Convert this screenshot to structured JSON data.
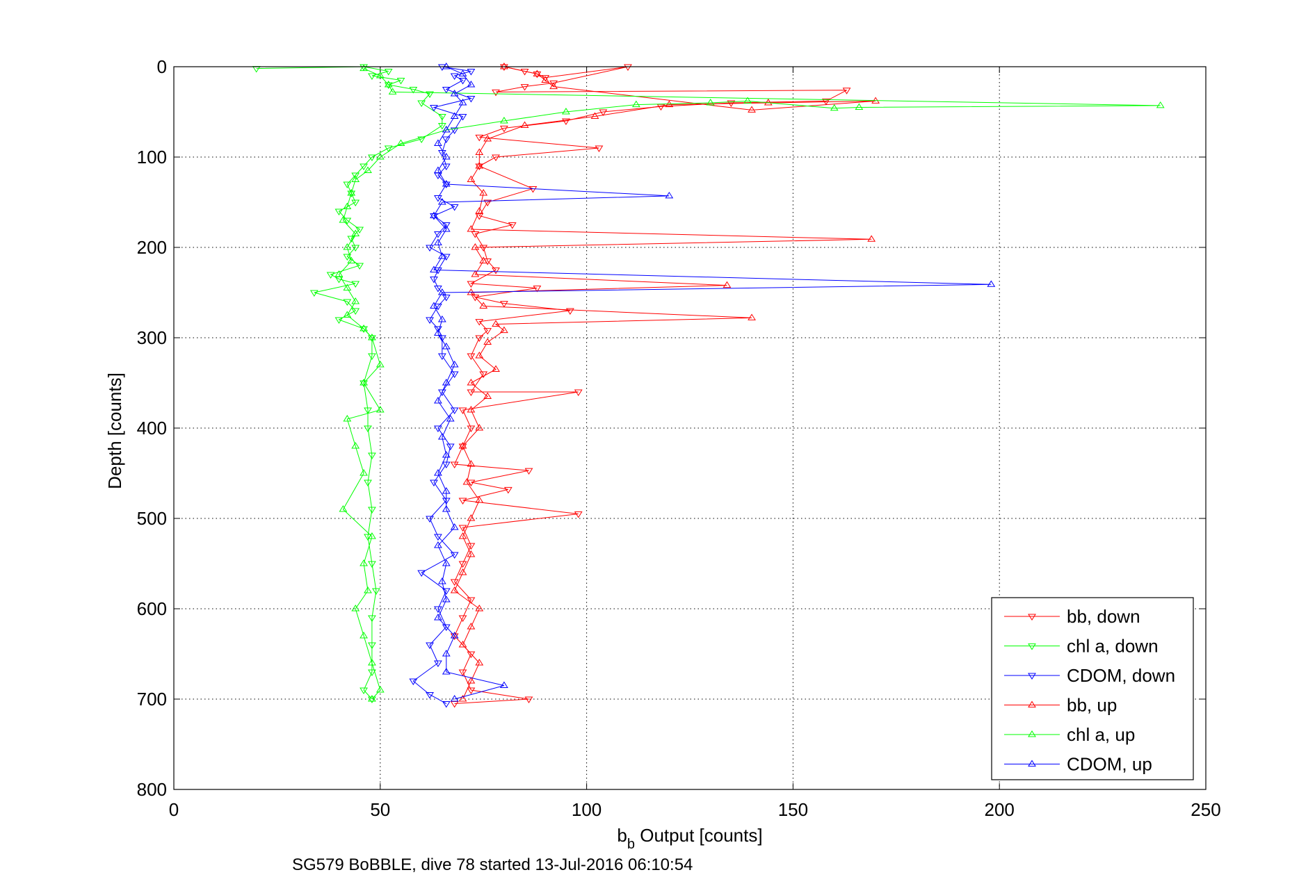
{
  "chart_data": {
    "type": "scatter",
    "xlabel_main": "b",
    "xlabel_sub": "b",
    "xlabel_rest": " Output [counts]",
    "ylabel": "Depth [counts]",
    "caption": "SG579 BoBBLE, dive 78 started 13-Jul-2016 06:10:54",
    "xlim": [
      0,
      250
    ],
    "ylim": [
      0,
      800
    ],
    "y_reversed": true,
    "grid": true,
    "x_ticks": [
      0,
      50,
      100,
      150,
      200,
      250
    ],
    "y_ticks": [
      0,
      100,
      200,
      300,
      400,
      500,
      600,
      700,
      800
    ],
    "x_tick_labels": [
      "0",
      "50",
      "100",
      "150",
      "200",
      "250"
    ],
    "y_tick_labels": [
      "0",
      "100",
      "200",
      "300",
      "400",
      "500",
      "600",
      "700",
      "800"
    ],
    "legend_position": "bottom-right",
    "series": [
      {
        "name": "bb, down",
        "color": "#ff0000",
        "marker": "triangle-down",
        "points": [
          [
            80,
            0
          ],
          [
            85,
            5
          ],
          [
            88,
            8
          ],
          [
            90,
            12
          ],
          [
            110,
            0
          ],
          [
            92,
            18
          ],
          [
            85,
            22
          ],
          [
            78,
            28
          ],
          [
            163,
            26
          ],
          [
            158,
            38
          ],
          [
            135,
            40
          ],
          [
            118,
            44
          ],
          [
            104,
            50
          ],
          [
            95,
            60
          ],
          [
            80,
            68
          ],
          [
            74,
            78
          ],
          [
            103,
            90
          ],
          [
            78,
            100
          ],
          [
            74,
            110
          ],
          [
            87,
            135
          ],
          [
            76,
            150
          ],
          [
            74,
            165
          ],
          [
            82,
            175
          ],
          [
            73,
            185
          ],
          [
            75,
            200
          ],
          [
            76,
            215
          ],
          [
            78,
            225
          ],
          [
            72,
            240
          ],
          [
            88,
            245
          ],
          [
            73,
            255
          ],
          [
            80,
            262
          ],
          [
            96,
            270
          ],
          [
            74,
            282
          ],
          [
            76,
            292
          ],
          [
            74,
            300
          ],
          [
            72,
            320
          ],
          [
            75,
            340
          ],
          [
            72,
            360
          ],
          [
            98,
            360
          ],
          [
            70,
            380
          ],
          [
            72,
            400
          ],
          [
            70,
            420
          ],
          [
            68,
            440
          ],
          [
            86,
            447
          ],
          [
            72,
            460
          ],
          [
            81,
            468
          ],
          [
            70,
            480
          ],
          [
            98,
            495
          ],
          [
            70,
            510
          ],
          [
            72,
            530
          ],
          [
            70,
            550
          ],
          [
            68,
            570
          ],
          [
            72,
            590
          ],
          [
            70,
            610
          ],
          [
            68,
            630
          ],
          [
            72,
            650
          ],
          [
            70,
            670
          ],
          [
            72,
            690
          ],
          [
            86,
            700
          ],
          [
            68,
            705
          ]
        ]
      },
      {
        "name": "chl a, down",
        "color": "#00ff00",
        "marker": "triangle-down",
        "points": [
          [
            20,
            2
          ],
          [
            46,
            0
          ],
          [
            52,
            5
          ],
          [
            48,
            10
          ],
          [
            55,
            15
          ],
          [
            52,
            20
          ],
          [
            58,
            25
          ],
          [
            62,
            30
          ],
          [
            60,
            40
          ],
          [
            65,
            55
          ],
          [
            65,
            65
          ],
          [
            60,
            80
          ],
          [
            52,
            90
          ],
          [
            48,
            100
          ],
          [
            46,
            110
          ],
          [
            44,
            120
          ],
          [
            42,
            130
          ],
          [
            43,
            140
          ],
          [
            44,
            150
          ],
          [
            40,
            160
          ],
          [
            42,
            170
          ],
          [
            45,
            180
          ],
          [
            43,
            190
          ],
          [
            44,
            200
          ],
          [
            42,
            210
          ],
          [
            45,
            220
          ],
          [
            38,
            230
          ],
          [
            40,
            235
          ],
          [
            44,
            240
          ],
          [
            34,
            250
          ],
          [
            42,
            260
          ],
          [
            44,
            270
          ],
          [
            40,
            280
          ],
          [
            46,
            290
          ],
          [
            48,
            300
          ],
          [
            48,
            320
          ],
          [
            46,
            350
          ],
          [
            47,
            380
          ],
          [
            47,
            400
          ],
          [
            48,
            430
          ],
          [
            47,
            460
          ],
          [
            48,
            490
          ],
          [
            47,
            520
          ],
          [
            48,
            550
          ],
          [
            49,
            580
          ],
          [
            48,
            610
          ],
          [
            48,
            640
          ],
          [
            48,
            670
          ],
          [
            46,
            690
          ],
          [
            48,
            700
          ]
        ]
      },
      {
        "name": "CDOM, down",
        "color": "#0000ff",
        "marker": "triangle-down",
        "points": [
          [
            65,
            0
          ],
          [
            72,
            5
          ],
          [
            68,
            10
          ],
          [
            70,
            15
          ],
          [
            66,
            25
          ],
          [
            72,
            35
          ],
          [
            63,
            45
          ],
          [
            70,
            55
          ],
          [
            68,
            70
          ],
          [
            66,
            80
          ],
          [
            65,
            95
          ],
          [
            66,
            110
          ],
          [
            64,
            120
          ],
          [
            66,
            130
          ],
          [
            64,
            145
          ],
          [
            68,
            155
          ],
          [
            63,
            165
          ],
          [
            66,
            175
          ],
          [
            64,
            185
          ],
          [
            62,
            200
          ],
          [
            66,
            210
          ],
          [
            64,
            225
          ],
          [
            63,
            235
          ],
          [
            64,
            245
          ],
          [
            66,
            255
          ],
          [
            64,
            265
          ],
          [
            62,
            280
          ],
          [
            64,
            290
          ],
          [
            65,
            300
          ],
          [
            65,
            320
          ],
          [
            68,
            340
          ],
          [
            65,
            360
          ],
          [
            68,
            380
          ],
          [
            64,
            400
          ],
          [
            67,
            420
          ],
          [
            66,
            440
          ],
          [
            63,
            460
          ],
          [
            66,
            480
          ],
          [
            62,
            500
          ],
          [
            64,
            520
          ],
          [
            68,
            540
          ],
          [
            60,
            560
          ],
          [
            66,
            580
          ],
          [
            64,
            600
          ],
          [
            66,
            620
          ],
          [
            62,
            640
          ],
          [
            64,
            660
          ],
          [
            58,
            680
          ],
          [
            62,
            695
          ],
          [
            66,
            705
          ]
        ]
      },
      {
        "name": "bb, up",
        "color": "#ff0000",
        "marker": "triangle-up",
        "points": [
          [
            80,
            0
          ],
          [
            88,
            8
          ],
          [
            90,
            15
          ],
          [
            92,
            22
          ],
          [
            140,
            48
          ],
          [
            170,
            38
          ],
          [
            144,
            40
          ],
          [
            120,
            42
          ],
          [
            102,
            55
          ],
          [
            85,
            65
          ],
          [
            76,
            80
          ],
          [
            74,
            95
          ],
          [
            74,
            110
          ],
          [
            72,
            125
          ],
          [
            75,
            140
          ],
          [
            74,
            160
          ],
          [
            72,
            180
          ],
          [
            169,
            191
          ],
          [
            73,
            200
          ],
          [
            75,
            215
          ],
          [
            73,
            230
          ],
          [
            134,
            242
          ],
          [
            72,
            250
          ],
          [
            75,
            265
          ],
          [
            140,
            278
          ],
          [
            78,
            285
          ],
          [
            80,
            292
          ],
          [
            76,
            305
          ],
          [
            74,
            320
          ],
          [
            78,
            335
          ],
          [
            72,
            350
          ],
          [
            76,
            365
          ],
          [
            72,
            380
          ],
          [
            74,
            400
          ],
          [
            70,
            420
          ],
          [
            72,
            440
          ],
          [
            71,
            460
          ],
          [
            74,
            480
          ],
          [
            72,
            500
          ],
          [
            70,
            520
          ],
          [
            72,
            540
          ],
          [
            70,
            560
          ],
          [
            68,
            580
          ],
          [
            74,
            600
          ],
          [
            72,
            620
          ],
          [
            70,
            640
          ],
          [
            74,
            660
          ],
          [
            72,
            680
          ],
          [
            70,
            700
          ]
        ]
      },
      {
        "name": "chl a, up",
        "color": "#00ff00",
        "marker": "triangle-up",
        "points": [
          [
            46,
            2
          ],
          [
            50,
            10
          ],
          [
            52,
            20
          ],
          [
            53,
            28
          ],
          [
            239,
            43
          ],
          [
            166,
            45
          ],
          [
            160,
            46
          ],
          [
            139,
            38
          ],
          [
            130,
            40
          ],
          [
            112,
            42
          ],
          [
            95,
            50
          ],
          [
            80,
            60
          ],
          [
            66,
            70
          ],
          [
            55,
            85
          ],
          [
            50,
            100
          ],
          [
            47,
            115
          ],
          [
            44,
            125
          ],
          [
            43,
            140
          ],
          [
            42,
            155
          ],
          [
            41,
            170
          ],
          [
            44,
            185
          ],
          [
            42,
            200
          ],
          [
            43,
            215
          ],
          [
            40,
            230
          ],
          [
            42,
            245
          ],
          [
            44,
            260
          ],
          [
            42,
            275
          ],
          [
            46,
            290
          ],
          [
            48,
            300
          ],
          [
            50,
            330
          ],
          [
            46,
            350
          ],
          [
            50,
            380
          ],
          [
            42,
            390
          ],
          [
            44,
            420
          ],
          [
            46,
            450
          ],
          [
            41,
            490
          ],
          [
            48,
            520
          ],
          [
            46,
            550
          ],
          [
            47,
            580
          ],
          [
            44,
            600
          ],
          [
            46,
            630
          ],
          [
            48,
            660
          ],
          [
            50,
            690
          ],
          [
            48,
            700
          ]
        ]
      },
      {
        "name": "CDOM, up",
        "color": "#0000ff",
        "marker": "triangle-up",
        "points": [
          [
            66,
            0
          ],
          [
            70,
            8
          ],
          [
            72,
            20
          ],
          [
            68,
            30
          ],
          [
            70,
            40
          ],
          [
            68,
            55
          ],
          [
            66,
            70
          ],
          [
            64,
            85
          ],
          [
            66,
            100
          ],
          [
            64,
            115
          ],
          [
            66,
            130
          ],
          [
            120,
            143
          ],
          [
            65,
            150
          ],
          [
            63,
            165
          ],
          [
            66,
            180
          ],
          [
            64,
            195
          ],
          [
            65,
            210
          ],
          [
            63,
            225
          ],
          [
            198,
            241
          ],
          [
            65,
            250
          ],
          [
            63,
            265
          ],
          [
            65,
            280
          ],
          [
            64,
            295
          ],
          [
            66,
            310
          ],
          [
            68,
            330
          ],
          [
            66,
            350
          ],
          [
            64,
            370
          ],
          [
            67,
            390
          ],
          [
            65,
            410
          ],
          [
            66,
            430
          ],
          [
            64,
            450
          ],
          [
            66,
            470
          ],
          [
            66,
            490
          ],
          [
            68,
            510
          ],
          [
            64,
            530
          ],
          [
            66,
            550
          ],
          [
            65,
            570
          ],
          [
            66,
            590
          ],
          [
            64,
            610
          ],
          [
            68,
            630
          ],
          [
            66,
            650
          ],
          [
            66,
            670
          ],
          [
            80,
            685
          ],
          [
            68,
            700
          ]
        ]
      }
    ]
  }
}
